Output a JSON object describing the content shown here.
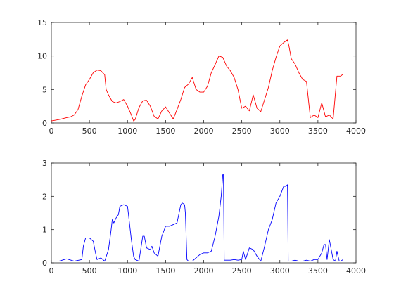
{
  "chart_data": [
    {
      "type": "line",
      "xlim": [
        0,
        4000
      ],
      "ylim": [
        0,
        15
      ],
      "xticks": [
        0,
        500,
        1000,
        1500,
        2000,
        2500,
        3000,
        3500,
        4000
      ],
      "yticks": [
        0,
        5,
        10,
        15
      ],
      "xtick_labels": [
        "0",
        "500",
        "1000",
        "1500",
        "2000",
        "2500",
        "3000",
        "3500",
        "4000"
      ],
      "ytick_labels": [
        "0",
        "5",
        "10",
        "15"
      ],
      "grid": false,
      "series": [
        {
          "color": "#ff0000",
          "x": [
            0,
            100,
            200,
            250,
            300,
            350,
            400,
            450,
            500,
            550,
            600,
            650,
            700,
            720,
            750,
            800,
            850,
            900,
            950,
            1000,
            1050,
            1080,
            1100,
            1150,
            1200,
            1250,
            1300,
            1350,
            1400,
            1450,
            1500,
            1550,
            1600,
            1650,
            1700,
            1750,
            1800,
            1850,
            1900,
            1950,
            2000,
            2050,
            2100,
            2150,
            2200,
            2250,
            2300,
            2350,
            2400,
            2450,
            2500,
            2550,
            2600,
            2650,
            2700,
            2750,
            2800,
            2850,
            2900,
            2950,
            3000,
            3050,
            3100,
            3120,
            3150,
            3200,
            3250,
            3300,
            3350,
            3400,
            3450,
            3500,
            3550,
            3600,
            3650,
            3700,
            3750,
            3800,
            3830
          ],
          "y": [
            0.3,
            0.5,
            0.8,
            0.9,
            1.2,
            2.0,
            4.0,
            5.7,
            6.5,
            7.5,
            7.9,
            7.8,
            7.2,
            5.0,
            4.2,
            3.2,
            3.0,
            3.2,
            3.5,
            2.5,
            1.2,
            0.3,
            0.5,
            2.3,
            3.3,
            3.4,
            2.5,
            1.0,
            0.6,
            1.8,
            2.4,
            1.5,
            0.6,
            2.0,
            3.5,
            5.3,
            5.8,
            6.8,
            5.0,
            4.6,
            4.6,
            5.5,
            7.5,
            8.7,
            10.0,
            9.8,
            8.5,
            7.8,
            6.8,
            5.0,
            2.2,
            2.5,
            1.8,
            4.2,
            2.2,
            1.7,
            3.5,
            5.3,
            7.8,
            9.8,
            11.5,
            12.0,
            12.4,
            11.5,
            9.6,
            8.8,
            7.5,
            6.5,
            6.2,
            0.8,
            1.2,
            0.8,
            3.0,
            0.9,
            1.2,
            0.6,
            7.0,
            7.0,
            7.3
          ]
        }
      ]
    },
    {
      "type": "line",
      "xlim": [
        0,
        4000
      ],
      "ylim": [
        0,
        3
      ],
      "xticks": [
        0,
        500,
        1000,
        1500,
        2000,
        2500,
        3000,
        3500,
        4000
      ],
      "yticks": [
        0,
        1,
        2,
        3
      ],
      "xtick_labels": [
        "0",
        "500",
        "1000",
        "1500",
        "2000",
        "2500",
        "3000",
        "3500",
        "4000"
      ],
      "ytick_labels": [
        "0",
        "1",
        "2",
        "3"
      ],
      "grid": false,
      "series": [
        {
          "color": "#0000ff",
          "x": [
            0,
            100,
            200,
            300,
            400,
            420,
            450,
            500,
            550,
            580,
            600,
            650,
            700,
            750,
            780,
            800,
            820,
            850,
            880,
            900,
            950,
            1000,
            1050,
            1080,
            1100,
            1150,
            1200,
            1220,
            1250,
            1300,
            1320,
            1350,
            1400,
            1450,
            1500,
            1550,
            1600,
            1650,
            1700,
            1720,
            1750,
            1760,
            1780,
            1800,
            1850,
            1900,
            1950,
            2000,
            2050,
            2100,
            2150,
            2200,
            2230,
            2250,
            2260,
            2270,
            2300,
            2350,
            2400,
            2450,
            2500,
            2520,
            2550,
            2600,
            2650,
            2700,
            2750,
            2800,
            2850,
            2900,
            2950,
            3000,
            3050,
            3080,
            3100,
            3110,
            3120,
            3150,
            3200,
            3250,
            3300,
            3350,
            3400,
            3450,
            3500,
            3550,
            3580,
            3600,
            3620,
            3650,
            3700,
            3730,
            3750,
            3780,
            3800,
            3830
          ],
          "y": [
            0.05,
            0.05,
            0.12,
            0.05,
            0.1,
            0.5,
            0.75,
            0.75,
            0.65,
            0.3,
            0.1,
            0.15,
            0.05,
            0.4,
            0.9,
            1.3,
            1.2,
            1.35,
            1.45,
            1.7,
            1.75,
            1.7,
            0.7,
            0.2,
            0.1,
            0.05,
            0.8,
            0.8,
            0.45,
            0.4,
            0.5,
            0.3,
            0.2,
            0.8,
            1.1,
            1.1,
            1.15,
            1.2,
            1.75,
            1.8,
            1.75,
            1.5,
            0.1,
            0.05,
            0.05,
            0.15,
            0.25,
            0.3,
            0.3,
            0.35,
            0.8,
            1.4,
            2.0,
            2.65,
            2.65,
            0.08,
            0.08,
            0.08,
            0.1,
            0.08,
            0.1,
            0.35,
            0.1,
            0.45,
            0.4,
            0.2,
            0.05,
            0.5,
            1.0,
            1.3,
            1.8,
            2.0,
            2.3,
            2.3,
            2.35,
            0.05,
            0.05,
            0.05,
            0.08,
            0.05,
            0.05,
            0.08,
            0.05,
            0.1,
            0.1,
            0.3,
            0.55,
            0.55,
            0.1,
            0.7,
            0.1,
            0.05,
            0.35,
            0.05,
            0.05,
            0.1
          ]
        }
      ]
    }
  ]
}
